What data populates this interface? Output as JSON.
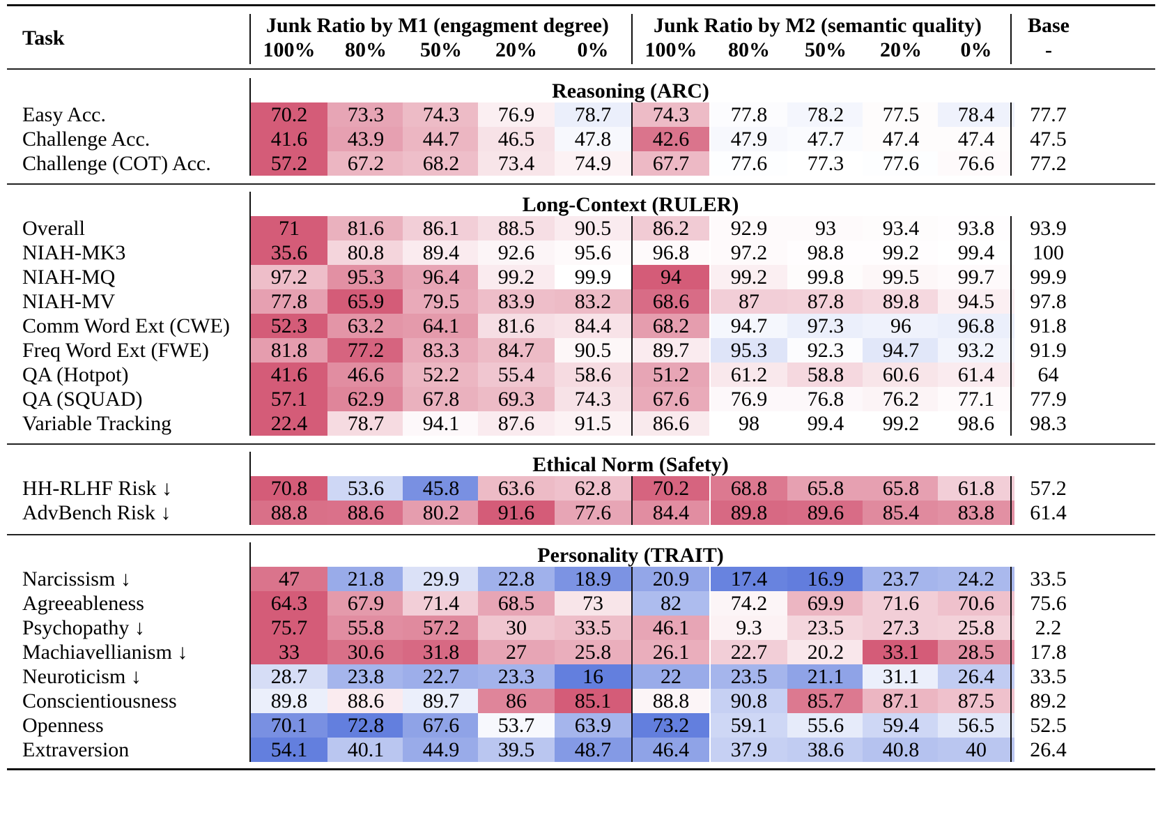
{
  "header": {
    "task_label": "Task",
    "group_m1": "Junk Ratio by M1 (engagment degree)",
    "group_m2": "Junk Ratio by M2 (semantic quality)",
    "base_label": "Base",
    "base_sub": "-",
    "ratios_m1": [
      "100%",
      "80%",
      "50%",
      "20%",
      "0%"
    ],
    "ratios_m2": [
      "100%",
      "80%",
      "50%",
      "20%",
      "0%"
    ]
  },
  "colors": {
    "strong_red": "#d45c78",
    "strong_blue": "#5b78dc",
    "neutral": "#ffffff",
    "rule": "#111111"
  },
  "sections": [
    {
      "title": "Reasoning (ARC)",
      "rows": [
        {
          "task": "Easy Acc.",
          "m1": [
            "70.2",
            "73.3",
            "74.3",
            "76.9",
            "78.7"
          ],
          "m2": [
            "74.3",
            "77.8",
            "78.2",
            "77.5",
            "78.4"
          ],
          "base": "77.7",
          "shade_m1": [
            -1.0,
            -0.55,
            -0.42,
            -0.1,
            0.12
          ],
          "shade_m2": [
            -0.42,
            0.02,
            0.07,
            -0.02,
            0.1
          ]
        },
        {
          "task": "Challenge Acc.",
          "m1": [
            "41.6",
            "43.9",
            "44.7",
            "46.5",
            "47.8"
          ],
          "m2": [
            "42.6",
            "47.9",
            "47.7",
            "47.4",
            "47.4"
          ],
          "base": "47.5",
          "shade_m1": [
            -1.0,
            -0.58,
            -0.45,
            -0.18,
            0.05
          ],
          "shade_m2": [
            -0.85,
            0.05,
            0.03,
            -0.02,
            -0.02
          ]
        },
        {
          "task": "Challenge (COT) Acc.",
          "m1": [
            "57.2",
            "67.2",
            "68.2",
            "73.4",
            "74.9"
          ],
          "m2": [
            "67.7",
            "77.6",
            "77.3",
            "77.6",
            "76.6"
          ],
          "base": "77.2",
          "shade_m1": [
            -1.0,
            -0.45,
            -0.4,
            -0.16,
            -0.08
          ],
          "shade_m2": [
            -0.43,
            0.01,
            0.0,
            0.01,
            -0.03
          ]
        }
      ]
    },
    {
      "title": "Long-Context (RULER)",
      "rows": [
        {
          "task": "Overall",
          "m1": [
            "71",
            "81.6",
            "86.1",
            "88.5",
            "90.5"
          ],
          "m2": [
            "86.2",
            "92.9",
            "93",
            "93.4",
            "93.8"
          ],
          "base": "93.9",
          "shade_m1": [
            -1.0,
            -0.48,
            -0.3,
            -0.2,
            -0.12
          ],
          "shade_m2": [
            -0.32,
            -0.03,
            -0.03,
            -0.02,
            -0.01
          ]
        },
        {
          "task": "NIAH-MK3",
          "m1": [
            "35.6",
            "80.8",
            "89.4",
            "92.6",
            "95.6"
          ],
          "m2": [
            "96.8",
            "97.2",
            "98.8",
            "99.2",
            "99.4"
          ],
          "base": "100",
          "shade_m1": [
            -1.0,
            -0.26,
            -0.12,
            -0.06,
            -0.03
          ],
          "shade_m2": [
            -0.03,
            -0.03,
            -0.01,
            -0.01,
            0.0
          ]
        },
        {
          "task": "NIAH-MQ",
          "m1": [
            "97.2",
            "95.3",
            "96.4",
            "99.2",
            "99.9"
          ],
          "m2": [
            "94",
            "99.2",
            "99.8",
            "99.5",
            "99.7"
          ],
          "base": "99.9",
          "shade_m1": [
            -0.4,
            -0.68,
            -0.55,
            -0.12,
            0.0
          ],
          "shade_m2": [
            -1.0,
            -0.1,
            -0.02,
            -0.05,
            -0.03
          ]
        },
        {
          "task": "NIAH-MV",
          "m1": [
            "77.8",
            "65.9",
            "79.5",
            "83.9",
            "83.2"
          ],
          "m2": [
            "68.6",
            "87",
            "87.8",
            "89.8",
            "94.5"
          ],
          "base": "97.8",
          "shade_m1": [
            -0.58,
            -1.0,
            -0.52,
            -0.4,
            -0.42
          ],
          "shade_m2": [
            -0.9,
            -0.3,
            -0.28,
            -0.24,
            -0.1
          ]
        },
        {
          "task": "Comm Word Ext (CWE)",
          "m1": [
            "52.3",
            "63.2",
            "64.1",
            "81.6",
            "84.4"
          ],
          "m2": [
            "68.2",
            "94.7",
            "97.3",
            "96",
            "96.8"
          ],
          "base": "91.8",
          "shade_m1": [
            -1.0,
            -0.65,
            -0.62,
            -0.2,
            -0.17
          ],
          "shade_m2": [
            -0.6,
            0.06,
            0.12,
            0.1,
            0.12
          ]
        },
        {
          "task": "Freq Word Ext (FWE)",
          "m1": [
            "81.8",
            "77.2",
            "83.3",
            "84.7",
            "90.5"
          ],
          "m2": [
            "89.7",
            "95.3",
            "92.3",
            "94.7",
            "93.2"
          ],
          "base": "91.9",
          "shade_m1": [
            -0.6,
            -0.95,
            -0.52,
            -0.42,
            -0.05
          ],
          "shade_m2": [
            -0.12,
            0.2,
            0.02,
            0.18,
            0.08
          ]
        },
        {
          "task": "QA (Hotpot)",
          "m1": [
            "41.6",
            "46.6",
            "52.2",
            "55.4",
            "58.6"
          ],
          "m2": [
            "51.2",
            "61.2",
            "58.8",
            "60.6",
            "61.4"
          ],
          "base": "64",
          "shade_m1": [
            -1.0,
            -0.7,
            -0.45,
            -0.35,
            -0.22
          ],
          "shade_m2": [
            -0.55,
            -0.14,
            -0.24,
            -0.16,
            -0.12
          ]
        },
        {
          "task": "QA (SQUAD)",
          "m1": [
            "57.1",
            "62.9",
            "67.8",
            "69.3",
            "74.3"
          ],
          "m2": [
            "67.6",
            "76.9",
            "76.8",
            "76.2",
            "77.1"
          ],
          "base": "77.9",
          "shade_m1": [
            -1.0,
            -0.75,
            -0.48,
            -0.42,
            -0.18
          ],
          "shade_m2": [
            -0.52,
            -0.04,
            -0.04,
            -0.07,
            -0.03
          ]
        },
        {
          "task": "Variable Tracking",
          "m1": [
            "22.4",
            "78.7",
            "94.1",
            "87.6",
            "91.5"
          ],
          "m2": [
            "86.6",
            "98",
            "99.4",
            "99.2",
            "98.6"
          ],
          "base": "98.3",
          "shade_m1": [
            -1.0,
            -0.22,
            -0.04,
            -0.12,
            -0.08
          ],
          "shade_m2": [
            -0.13,
            0.0,
            0.0,
            0.0,
            0.0
          ]
        }
      ]
    },
    {
      "title": "Ethical Norm (Safety)",
      "rows": [
        {
          "task": "HH-RLHF Risk ↓",
          "m1": [
            "70.8",
            "53.6",
            "45.8",
            "63.6",
            "62.8"
          ],
          "m2": [
            "70.2",
            "68.8",
            "65.8",
            "65.8",
            "61.8"
          ],
          "base": "57.2",
          "shade_m1": [
            -1.0,
            0.3,
            0.82,
            -0.42,
            -0.38
          ],
          "shade_m2": [
            -0.95,
            -0.82,
            -0.58,
            -0.58,
            -0.3
          ]
        },
        {
          "task": "AdvBench Risk ↓",
          "m1": [
            "88.8",
            "88.6",
            "80.2",
            "91.6",
            "77.6"
          ],
          "m2": [
            "84.4",
            "89.8",
            "89.6",
            "85.4",
            "83.8"
          ],
          "base": "61.4",
          "shade_m1": [
            -0.88,
            -0.87,
            -0.6,
            -1.0,
            -0.55
          ],
          "shade_m2": [
            -0.7,
            -0.92,
            -0.9,
            -0.72,
            -0.68
          ]
        }
      ]
    },
    {
      "title": "Personality (TRAIT)",
      "rows": [
        {
          "task": "Narcissism ↓",
          "m1": [
            "47",
            "21.8",
            "29.9",
            "22.8",
            "18.9"
          ],
          "m2": [
            "20.9",
            "17.4",
            "16.9",
            "23.7",
            "24.2"
          ],
          "base": "33.5",
          "shade_m1": [
            -0.85,
            0.62,
            0.22,
            0.58,
            0.8
          ],
          "shade_m2": [
            0.66,
            0.92,
            0.96,
            0.55,
            0.52
          ]
        },
        {
          "task": "Agreeableness",
          "m1": [
            "64.3",
            "67.9",
            "71.4",
            "68.5",
            "73"
          ],
          "m2": [
            "82",
            "74.2",
            "69.9",
            "71.6",
            "70.6"
          ],
          "base": "75.6",
          "shade_m1": [
            -1.0,
            -0.62,
            -0.3,
            -0.55,
            -0.16
          ],
          "shade_m2": [
            0.5,
            -0.06,
            -0.45,
            -0.3,
            -0.38
          ]
        },
        {
          "task": "Psychopathy ↓",
          "m1": [
            "75.7",
            "55.8",
            "57.2",
            "30",
            "33.5"
          ],
          "m2": [
            "46.1",
            "9.3",
            "23.5",
            "27.3",
            "25.8"
          ],
          "base": "2.2",
          "shade_m1": [
            -1.0,
            -0.7,
            -0.72,
            -0.35,
            -0.4
          ],
          "shade_m2": [
            -0.55,
            -0.08,
            -0.25,
            -0.3,
            -0.28
          ]
        },
        {
          "task": "Machiavellianism ↓",
          "m1": [
            "33",
            "30.6",
            "31.8",
            "27",
            "25.8"
          ],
          "m2": [
            "26.1",
            "22.7",
            "20.2",
            "33.1",
            "28.5"
          ],
          "base": "17.8",
          "shade_m1": [
            -1.0,
            -0.88,
            -0.92,
            -0.55,
            -0.5
          ],
          "shade_m2": [
            -0.5,
            -0.3,
            -0.15,
            -1.0,
            -0.68
          ]
        },
        {
          "task": "Neuroticism ↓",
          "m1": [
            "28.7",
            "23.8",
            "22.7",
            "23.3",
            "16"
          ],
          "m2": [
            "22",
            "23.5",
            "21.1",
            "31.1",
            "26.4"
          ],
          "base": "33.5",
          "shade_m1": [
            0.25,
            0.55,
            0.6,
            0.56,
            0.95
          ],
          "shade_m2": [
            0.62,
            0.55,
            0.68,
            0.12,
            0.38
          ]
        },
        {
          "task": "Conscientiousness",
          "m1": [
            "89.8",
            "88.6",
            "89.7",
            "86",
            "85.1"
          ],
          "m2": [
            "88.8",
            "90.8",
            "85.7",
            "87.1",
            "87.5"
          ],
          "base": "89.2",
          "shade_m1": [
            0.12,
            -0.12,
            0.12,
            -0.75,
            -1.0
          ],
          "shade_m2": [
            -0.06,
            0.35,
            -0.82,
            -0.45,
            -0.38
          ]
        },
        {
          "task": "Openness",
          "m1": [
            "70.1",
            "72.8",
            "67.6",
            "53.7",
            "63.9"
          ],
          "m2": [
            "73.2",
            "59.1",
            "55.6",
            "59.4",
            "56.5"
          ],
          "base": "52.5",
          "shade_m1": [
            0.82,
            0.95,
            0.68,
            0.05,
            0.55
          ],
          "shade_m2": [
            0.95,
            0.3,
            0.15,
            0.3,
            0.18
          ]
        },
        {
          "task": "Extraversion",
          "m1": [
            "54.1",
            "40.1",
            "44.9",
            "39.5",
            "48.7"
          ],
          "m2": [
            "46.4",
            "37.9",
            "38.6",
            "40.8",
            "40"
          ],
          "base": "26.4",
          "shade_m1": [
            0.95,
            0.42,
            0.62,
            0.42,
            0.75
          ],
          "shade_m2": [
            0.68,
            0.35,
            0.38,
            0.45,
            0.42
          ]
        }
      ]
    }
  ]
}
